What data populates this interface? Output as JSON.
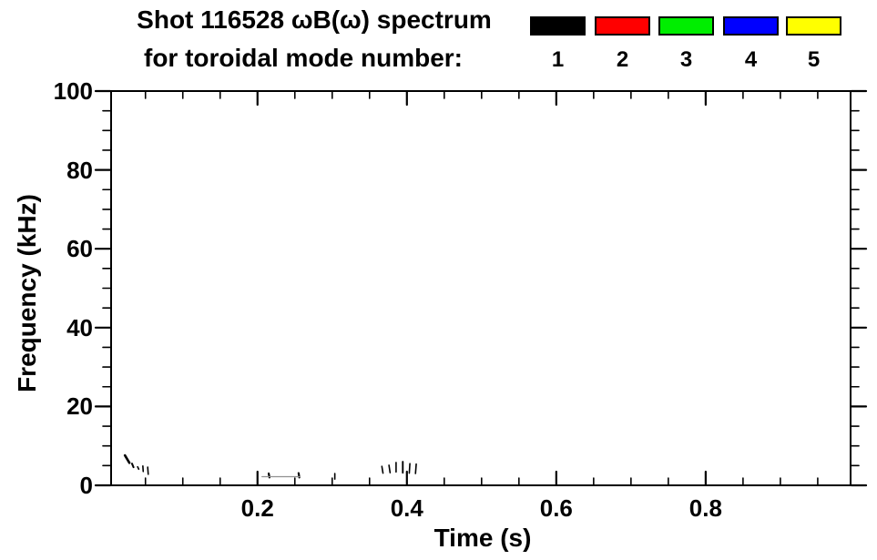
{
  "title": {
    "line1": "Shot 116528 ωB(ω) spectrum",
    "line2": "for toroidal mode number:"
  },
  "legend": {
    "entries": [
      {
        "label": "1",
        "color": "#000000"
      },
      {
        "label": "2",
        "color": "#ff0000"
      },
      {
        "label": "3",
        "color": "#00ee00"
      },
      {
        "label": "4",
        "color": "#0000ff"
      },
      {
        "label": "5",
        "color": "#ffff00"
      }
    ]
  },
  "chart_data": {
    "type": "scatter",
    "title": "Shot 116528 ωB(ω) spectrum for toroidal mode number: 1 2 3 4 5",
    "xlabel": "Time (s)",
    "ylabel": "Frequency (kHz)",
    "xlim": [
      0.004,
      0.994
    ],
    "ylim": [
      0,
      100
    ],
    "x_major_ticks": [
      0.2,
      0.4,
      0.6,
      0.8
    ],
    "x_tick_labels": [
      "0.2",
      "0.4",
      "0.6",
      "0.8"
    ],
    "x_minor_step": 0.05,
    "y_major_ticks": [
      0,
      20,
      40,
      60,
      80,
      100
    ],
    "y_tick_labels": [
      "0",
      "20",
      "40",
      "60",
      "80",
      "100"
    ],
    "y_minor_step": 5,
    "grid": false,
    "legend_position": "top-right",
    "series": [
      {
        "name": "mode-n1-marks",
        "color": "#000000",
        "segments_format": [
          "t1_s",
          "f1_kHz",
          "t2_s",
          "f2_kHz",
          "stroke_px"
        ],
        "segments": [
          [
            0.0225,
            7.6,
            0.0285,
            5.7,
            2.6
          ],
          [
            0.032,
            5.5,
            0.034,
            4.6,
            2.0
          ],
          [
            0.0395,
            4.7,
            0.041,
            4.1,
            1.6
          ],
          [
            0.0465,
            4.9,
            0.047,
            3.5,
            1.6
          ],
          [
            0.053,
            4.6,
            0.0537,
            2.8,
            1.6
          ],
          [
            0.215,
            3.0,
            0.216,
            2.0,
            2.2
          ],
          [
            0.255,
            3.1,
            0.256,
            2.0,
            2.2
          ],
          [
            0.3035,
            3.0,
            0.3035,
            1.6,
            1.6
          ],
          [
            0.3665,
            4.8,
            0.368,
            3.1,
            1.6
          ],
          [
            0.376,
            5.1,
            0.3775,
            3.2,
            1.6
          ],
          [
            0.3855,
            5.8,
            0.3855,
            3.4,
            1.6
          ],
          [
            0.3945,
            6.0,
            0.3945,
            3.2,
            1.9
          ],
          [
            0.404,
            5.5,
            0.4032,
            3.1,
            1.6
          ],
          [
            0.4125,
            5.4,
            0.4115,
            3.0,
            1.6
          ]
        ]
      },
      {
        "name": "mode-n1-connector-trace",
        "color": "#909090",
        "segments_format": [
          "t1_s",
          "f1_kHz",
          "t2_s",
          "f2_kHz",
          "stroke_px"
        ],
        "segments": [
          [
            0.206,
            2.2,
            0.257,
            2.2,
            1.2
          ]
        ]
      }
    ]
  }
}
